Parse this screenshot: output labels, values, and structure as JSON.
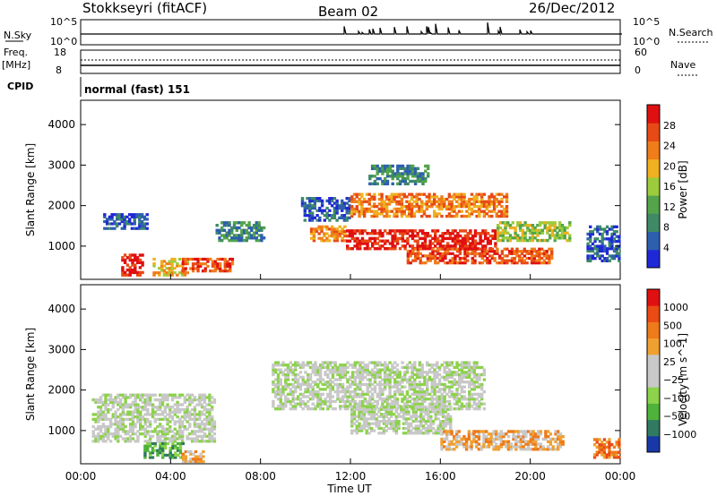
{
  "header": {
    "station": "Stokkseyri (fitACF)",
    "beam": "Beam 02",
    "date": "26/Dec/2012"
  },
  "sky_panel": {
    "left_label": "N.Sky",
    "left_ticks": [
      "10^5",
      "10^0"
    ],
    "right_label": "N.Search",
    "right_ticks": [
      "10^5",
      "10^0"
    ]
  },
  "freq_panel": {
    "left_label": "Freq.",
    "left_unit": "[MHz]",
    "left_ticks": [
      "18",
      "8"
    ],
    "right_label": "Nave",
    "right_ticks": [
      "60",
      "0"
    ]
  },
  "cpid": {
    "label": "CPID",
    "value": "normal (fast) 151"
  },
  "colors": {
    "power": [
      "#1f28d6",
      "#2e5fae",
      "#3e8a66",
      "#53a44a",
      "#9ccc3c",
      "#f0b020",
      "#f07c1a",
      "#e84a16",
      "#e01010"
    ],
    "velocity": [
      "#1838a8",
      "#2f7a60",
      "#4fb23a",
      "#8cd24a",
      "#c8c8c8",
      "#c8c8c8",
      "#f0a030",
      "#ee7a1a",
      "#ea4a14",
      "#e01010"
    ]
  },
  "chart_data": [
    {
      "type": "heatmap",
      "name": "power",
      "ylabel": "Slant Range [km]",
      "ylim": [
        180,
        4600
      ],
      "yticks": [
        "1000",
        "2000",
        "3000",
        "4000"
      ],
      "xlim": [
        "00:00",
        "24:00"
      ],
      "colorbar": {
        "label": "Power [dB]",
        "ticks": [
          "28",
          "24",
          "20",
          "16",
          "12",
          "8",
          "4"
        ]
      },
      "echo_regions": [
        {
          "t": [
            1.0,
            3.0
          ],
          "r": [
            1400,
            1800
          ],
          "level": 1
        },
        {
          "t": [
            1.8,
            2.8
          ],
          "r": [
            250,
            800
          ],
          "level": 8
        },
        {
          "t": [
            3.2,
            4.8
          ],
          "r": [
            250,
            700
          ],
          "level": 5
        },
        {
          "t": [
            4.5,
            6.8
          ],
          "r": [
            350,
            700
          ],
          "level": 7
        },
        {
          "t": [
            6.0,
            8.2
          ],
          "r": [
            1100,
            1600
          ],
          "level": 2
        },
        {
          "t": [
            9.8,
            12.0
          ],
          "r": [
            1600,
            2200
          ],
          "level": 1
        },
        {
          "t": [
            10.2,
            11.8
          ],
          "r": [
            1100,
            1500
          ],
          "level": 6
        },
        {
          "t": [
            11.8,
            18.5
          ],
          "r": [
            900,
            1400
          ],
          "level": 8
        },
        {
          "t": [
            12.0,
            19.0
          ],
          "r": [
            1700,
            2300
          ],
          "level": 6
        },
        {
          "t": [
            12.8,
            15.5
          ],
          "r": [
            2500,
            3000
          ],
          "level": 2
        },
        {
          "t": [
            14.5,
            21.0
          ],
          "r": [
            550,
            950
          ],
          "level": 7
        },
        {
          "t": [
            18.5,
            21.8
          ],
          "r": [
            1100,
            1600
          ],
          "level": 4
        },
        {
          "t": [
            22.5,
            24.0
          ],
          "r": [
            600,
            1500
          ],
          "level": 1
        }
      ]
    },
    {
      "type": "heatmap",
      "name": "velocity",
      "ylabel": "Slant Range [km]",
      "ylim": [
        180,
        4600
      ],
      "yticks": [
        "1000",
        "2000",
        "3000",
        "4000"
      ],
      "xlabel": "Time UT",
      "xticks": [
        "00:00",
        "04:00",
        "08:00",
        "12:00",
        "16:00",
        "20:00",
        "00:00"
      ],
      "colorbar": {
        "label": "Velocity [m s^-1]",
        "ticks": [
          "1000",
          "500",
          "100",
          "25",
          "−25",
          "−100",
          "−500",
          "−1000"
        ]
      },
      "echo_regions": [
        {
          "t": [
            0.5,
            6.0
          ],
          "r": [
            700,
            1900
          ],
          "level": 4
        },
        {
          "t": [
            2.8,
            4.6
          ],
          "r": [
            300,
            700
          ],
          "level": 2
        },
        {
          "t": [
            4.5,
            5.5
          ],
          "r": [
            200,
            500
          ],
          "level": 6
        },
        {
          "t": [
            8.5,
            18.0
          ],
          "r": [
            1500,
            2700
          ],
          "level": 4
        },
        {
          "t": [
            12.0,
            16.5
          ],
          "r": [
            900,
            1600
          ],
          "level": 4
        },
        {
          "t": [
            16.0,
            21.5
          ],
          "r": [
            500,
            1000
          ],
          "level": 6
        },
        {
          "t": [
            22.8,
            24.0
          ],
          "r": [
            300,
            800
          ],
          "level": 7
        }
      ]
    }
  ]
}
